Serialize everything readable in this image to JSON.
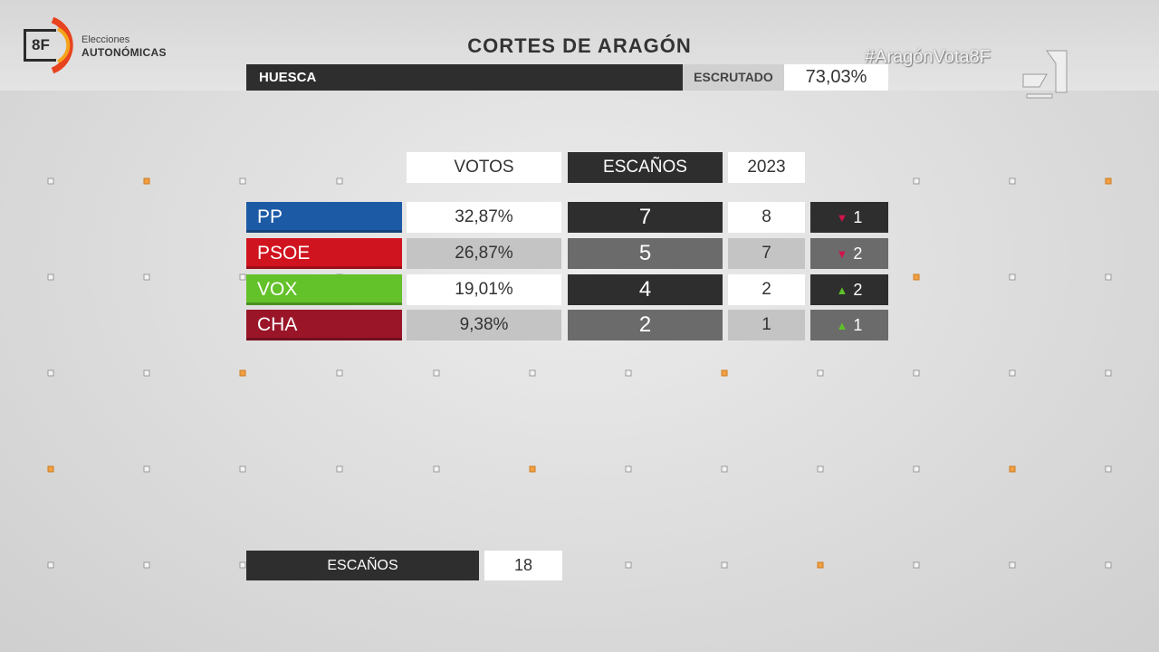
{
  "brand": {
    "logo_number": "8F",
    "logo_line1": "Elecciones",
    "logo_line2": "AUTONÓMICAS",
    "hashtag": "#AragónVota8F"
  },
  "header": {
    "title": "CORTES DE ARAGÓN",
    "region": "HUESCA",
    "scrutiny_label": "ESCRUTADO",
    "scrutiny_value": "73,03%"
  },
  "table": {
    "columns": {
      "votes": "VOTOS",
      "seats": "ESCAÑOS",
      "previous": "2023"
    },
    "rows": [
      {
        "party": "PP",
        "color": "#1c5aa6",
        "votes": "32,87%",
        "seats": "7",
        "previous": "8",
        "change_dir": "down",
        "change": "1"
      },
      {
        "party": "PSOE",
        "color": "#d0141f",
        "votes": "26,87%",
        "seats": "5",
        "previous": "7",
        "change_dir": "down",
        "change": "2"
      },
      {
        "party": "VOX",
        "color": "#63c12a",
        "votes": "19,01%",
        "seats": "4",
        "previous": "2",
        "change_dir": "up",
        "change": "2"
      },
      {
        "party": "CHA",
        "color": "#9a1528",
        "votes": "9,38%",
        "seats": "2",
        "previous": "1",
        "change_dir": "up",
        "change": "1"
      }
    ]
  },
  "total": {
    "label": "ESCAÑOS",
    "value": "18"
  },
  "colors": {
    "dark_panel": "#2e2e2e",
    "down_arrow": "#d0144a",
    "up_arrow": "#5dc12a"
  }
}
